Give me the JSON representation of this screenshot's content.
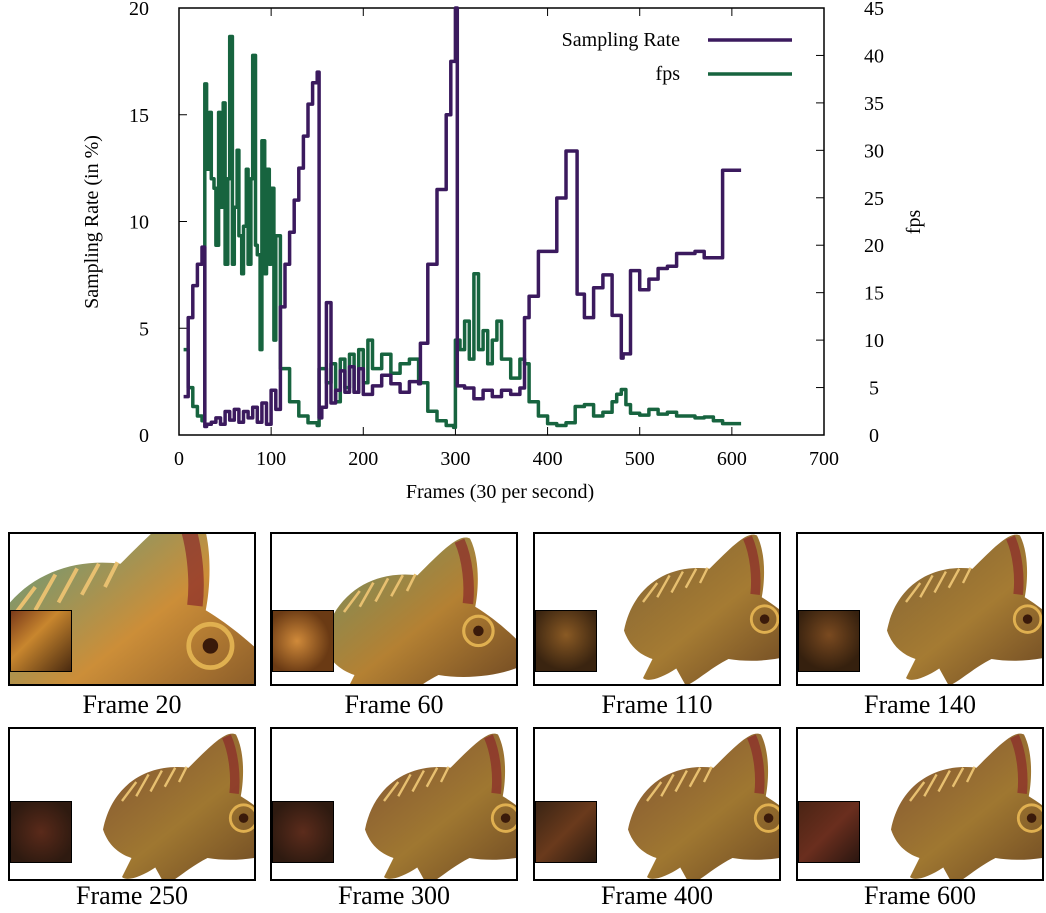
{
  "chart_data": {
    "type": "line",
    "xlabel": "Frames (30 per second)",
    "ylabel": "Sampling Rate (in %)",
    "y2label": "fps",
    "xlim": [
      0,
      700
    ],
    "ylim": [
      0,
      20
    ],
    "y2lim": [
      0,
      45
    ],
    "xticks": [
      0,
      100,
      200,
      300,
      400,
      500,
      600,
      700
    ],
    "yticks": [
      0,
      5,
      10,
      15,
      20
    ],
    "y2ticks": [
      0,
      5,
      10,
      15,
      20,
      25,
      30,
      35,
      40,
      45
    ],
    "legend_position": "top-right",
    "colors": {
      "sampling": "#3b1a5e",
      "fps": "#17643f"
    },
    "series": [
      {
        "name": "Sampling Rate",
        "axis": "left",
        "x": [
          5,
          10,
          15,
          20,
          25,
          28,
          30,
          35,
          40,
          45,
          50,
          55,
          60,
          65,
          70,
          75,
          80,
          85,
          90,
          95,
          100,
          105,
          110,
          115,
          120,
          125,
          130,
          135,
          140,
          145,
          150,
          152,
          155,
          160,
          165,
          170,
          175,
          180,
          185,
          190,
          195,
          200,
          210,
          220,
          230,
          240,
          250,
          260,
          262,
          270,
          280,
          290,
          295,
          300,
          302,
          310,
          320,
          330,
          340,
          350,
          360,
          370,
          375,
          380,
          390,
          400,
          410,
          420,
          430,
          432,
          440,
          450,
          460,
          470,
          480,
          482,
          490,
          500,
          510,
          520,
          530,
          540,
          550,
          560,
          570,
          580,
          590,
          600,
          610
        ],
        "y": [
          1.8,
          5.5,
          7,
          8,
          8.8,
          0.4,
          0.5,
          0.6,
          0.8,
          0.5,
          1.1,
          0.7,
          1.2,
          0.6,
          1.1,
          0.8,
          1.3,
          0.6,
          1.5,
          0.5,
          2.1,
          1.2,
          6,
          8,
          9.5,
          11,
          12.5,
          14,
          15.5,
          16.5,
          17,
          0.8,
          1.3,
          6.2,
          1.5,
          2.1,
          3,
          2,
          3.2,
          2,
          3.1,
          1.9,
          2.3,
          2.8,
          2.4,
          2,
          2.5,
          2.4,
          4.3,
          8,
          11.5,
          15,
          17.5,
          20,
          2.3,
          2.2,
          1.7,
          2.1,
          1.8,
          2.1,
          1.9,
          2.2,
          5.5,
          6.5,
          8.6,
          8.6,
          11.1,
          13.3,
          13.3,
          6.6,
          5.5,
          6.9,
          7.5,
          5.6,
          3.6,
          3.8,
          7.7,
          6.8,
          7.3,
          7.8,
          7.9,
          8.5,
          8.5,
          8.6,
          8.3,
          8.3,
          12.4,
          12.4,
          12.4
        ]
      },
      {
        "name": "fps",
        "axis": "right",
        "x": [
          5,
          10,
          15,
          20,
          25,
          28,
          30,
          33,
          35,
          38,
          40,
          43,
          45,
          48,
          50,
          53,
          55,
          58,
          60,
          63,
          65,
          68,
          70,
          73,
          75,
          78,
          80,
          83,
          85,
          88,
          90,
          93,
          95,
          98,
          100,
          103,
          105,
          110,
          120,
          130,
          140,
          150,
          152,
          160,
          165,
          170,
          175,
          180,
          185,
          190,
          195,
          200,
          205,
          210,
          220,
          230,
          240,
          250,
          260,
          270,
          280,
          290,
          298,
          300,
          305,
          310,
          315,
          320,
          325,
          330,
          335,
          340,
          345,
          350,
          360,
          370,
          375,
          380,
          390,
          400,
          410,
          420,
          430,
          440,
          450,
          460,
          470,
          475,
          480,
          485,
          490,
          500,
          510,
          520,
          530,
          540,
          550,
          560,
          570,
          580,
          590,
          600,
          610
        ],
        "y": [
          9,
          5,
          3,
          2,
          1.5,
          37,
          28,
          34,
          27,
          26,
          20,
          34,
          24,
          35,
          18,
          27,
          42,
          18,
          24,
          30,
          21,
          17,
          22,
          28,
          18,
          27,
          40,
          20,
          19,
          9,
          31,
          17,
          28,
          18,
          26,
          10,
          21,
          7,
          3.5,
          2,
          1.3,
          1,
          7,
          5.5,
          7.5,
          3.5,
          8,
          5,
          8.5,
          4.5,
          9,
          5.5,
          10,
          7,
          8.5,
          6.5,
          7.5,
          8,
          5.5,
          2.5,
          1.5,
          1,
          0.8,
          10,
          9,
          12,
          8,
          17,
          9,
          11,
          7.5,
          10,
          12,
          8,
          6,
          8,
          7.5,
          3.5,
          2,
          1.2,
          1,
          1.3,
          3,
          3.2,
          2,
          2.4,
          3.5,
          4.3,
          4.8,
          3.2,
          2.3,
          2.1,
          2.7,
          2.2,
          2.4,
          2.0,
          2.0,
          1.8,
          1.9,
          1.5,
          1.2,
          1.2,
          1.2
        ]
      }
    ]
  },
  "frames": [
    {
      "caption": "Frame 20"
    },
    {
      "caption": "Frame 60"
    },
    {
      "caption": "Frame 110"
    },
    {
      "caption": "Frame 140"
    },
    {
      "caption": "Frame 250"
    },
    {
      "caption": "Frame 300"
    },
    {
      "caption": "Frame 400"
    },
    {
      "caption": "Frame 600"
    }
  ]
}
